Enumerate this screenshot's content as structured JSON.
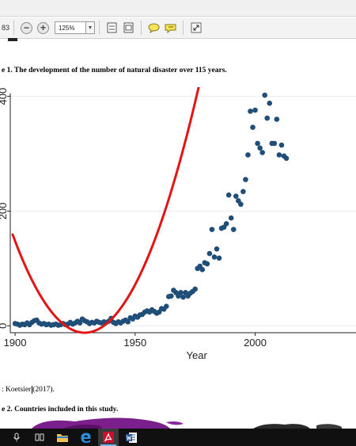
{
  "toolbar": {
    "page_fragment": "83",
    "zoom_minus": "−",
    "zoom_plus": "+",
    "zoom_value": "125%",
    "zoom_dropdown": "▼"
  },
  "document": {
    "figure1_caption": "e 1. The development of the number of natural disaster over 115 years.",
    "source_before": ": Koetsier",
    "source_after": "(2017).",
    "figure2_caption": "e 2. Countries included in this study."
  },
  "chart_data": {
    "type": "scatter",
    "xlabel": "Year",
    "ylabel": "",
    "xlim": [
      1898,
      2042
    ],
    "ylim": [
      -12,
      405
    ],
    "x_ticks": [
      "1900",
      "1950",
      "2000"
    ],
    "y_ticks": [
      "0",
      "200",
      "400"
    ],
    "grid": true,
    "colors": {
      "points": "#1f4e79",
      "fit": "#e31414",
      "grid": "#ececec"
    },
    "series": [
      {
        "kind": "points",
        "values": [
          [
            1900,
            4
          ],
          [
            1901,
            3
          ],
          [
            1902,
            1
          ],
          [
            1903,
            3
          ],
          [
            1904,
            2
          ],
          [
            1905,
            5
          ],
          [
            1906,
            2
          ],
          [
            1907,
            6
          ],
          [
            1908,
            9
          ],
          [
            1909,
            10
          ],
          [
            1910,
            5
          ],
          [
            1911,
            3
          ],
          [
            1912,
            4
          ],
          [
            1913,
            2
          ],
          [
            1914,
            3
          ],
          [
            1915,
            1
          ],
          [
            1916,
            2
          ],
          [
            1917,
            3
          ],
          [
            1918,
            1
          ],
          [
            1919,
            2
          ],
          [
            1920,
            4
          ],
          [
            1921,
            2
          ],
          [
            1922,
            3
          ],
          [
            1923,
            6
          ],
          [
            1924,
            3
          ],
          [
            1925,
            5
          ],
          [
            1926,
            8
          ],
          [
            1927,
            5
          ],
          [
            1928,
            12
          ],
          [
            1929,
            9
          ],
          [
            1930,
            7
          ],
          [
            1931,
            4
          ],
          [
            1932,
            6
          ],
          [
            1933,
            5
          ],
          [
            1934,
            8
          ],
          [
            1935,
            6
          ],
          [
            1936,
            5
          ],
          [
            1937,
            7
          ],
          [
            1938,
            6
          ],
          [
            1939,
            8
          ],
          [
            1940,
            13
          ],
          [
            1941,
            6
          ],
          [
            1942,
            4
          ],
          [
            1943,
            7
          ],
          [
            1944,
            5
          ],
          [
            1945,
            8
          ],
          [
            1946,
            10
          ],
          [
            1947,
            7
          ],
          [
            1948,
            14
          ],
          [
            1949,
            12
          ],
          [
            1950,
            17
          ],
          [
            1951,
            15
          ],
          [
            1952,
            19
          ],
          [
            1953,
            20
          ],
          [
            1954,
            24
          ],
          [
            1955,
            26
          ],
          [
            1956,
            24
          ],
          [
            1957,
            28
          ],
          [
            1958,
            25
          ],
          [
            1959,
            22
          ],
          [
            1960,
            24
          ],
          [
            1961,
            30
          ],
          [
            1962,
            29
          ],
          [
            1963,
            34
          ],
          [
            1964,
            51
          ],
          [
            1965,
            52
          ],
          [
            1966,
            62
          ],
          [
            1967,
            58
          ],
          [
            1968,
            52
          ],
          [
            1969,
            58
          ],
          [
            1970,
            50
          ],
          [
            1971,
            58
          ],
          [
            1972,
            52
          ],
          [
            1973,
            57
          ],
          [
            1974,
            60
          ],
          [
            1975,
            64
          ],
          [
            1976,
            100
          ],
          [
            1977,
            104
          ],
          [
            1978,
            98
          ],
          [
            1979,
            110
          ],
          [
            1980,
            108
          ],
          [
            1981,
            126
          ],
          [
            1982,
            168
          ],
          [
            1983,
            120
          ],
          [
            1984,
            134
          ],
          [
            1985,
            118
          ],
          [
            1986,
            170
          ],
          [
            1987,
            172
          ],
          [
            1988,
            178
          ],
          [
            1989,
            228
          ],
          [
            1990,
            188
          ],
          [
            1991,
            168
          ],
          [
            1992,
            226
          ],
          [
            1993,
            218
          ],
          [
            1994,
            212
          ],
          [
            1995,
            234
          ],
          [
            1996,
            255
          ],
          [
            1997,
            298
          ],
          [
            1998,
            374
          ],
          [
            1999,
            346
          ],
          [
            2000,
            376
          ],
          [
            2001,
            318
          ],
          [
            2002,
            310
          ],
          [
            2003,
            302
          ],
          [
            2004,
            402
          ],
          [
            2005,
            362
          ],
          [
            2006,
            388
          ],
          [
            2007,
            318
          ],
          [
            2008,
            318
          ],
          [
            2009,
            360
          ],
          [
            2010,
            298
          ],
          [
            2011,
            315
          ],
          [
            2012,
            296
          ],
          [
            2013,
            292
          ]
        ]
      },
      {
        "kind": "quadratic_fit",
        "a": 0.19,
        "vertex_x": 1929,
        "vertex_y": -12,
        "x_range": [
          1899,
          2015
        ]
      }
    ]
  },
  "taskbar": {
    "items": [
      "mic",
      "task-view",
      "file-explorer",
      "edge",
      "acrobat-reader",
      "word"
    ]
  }
}
